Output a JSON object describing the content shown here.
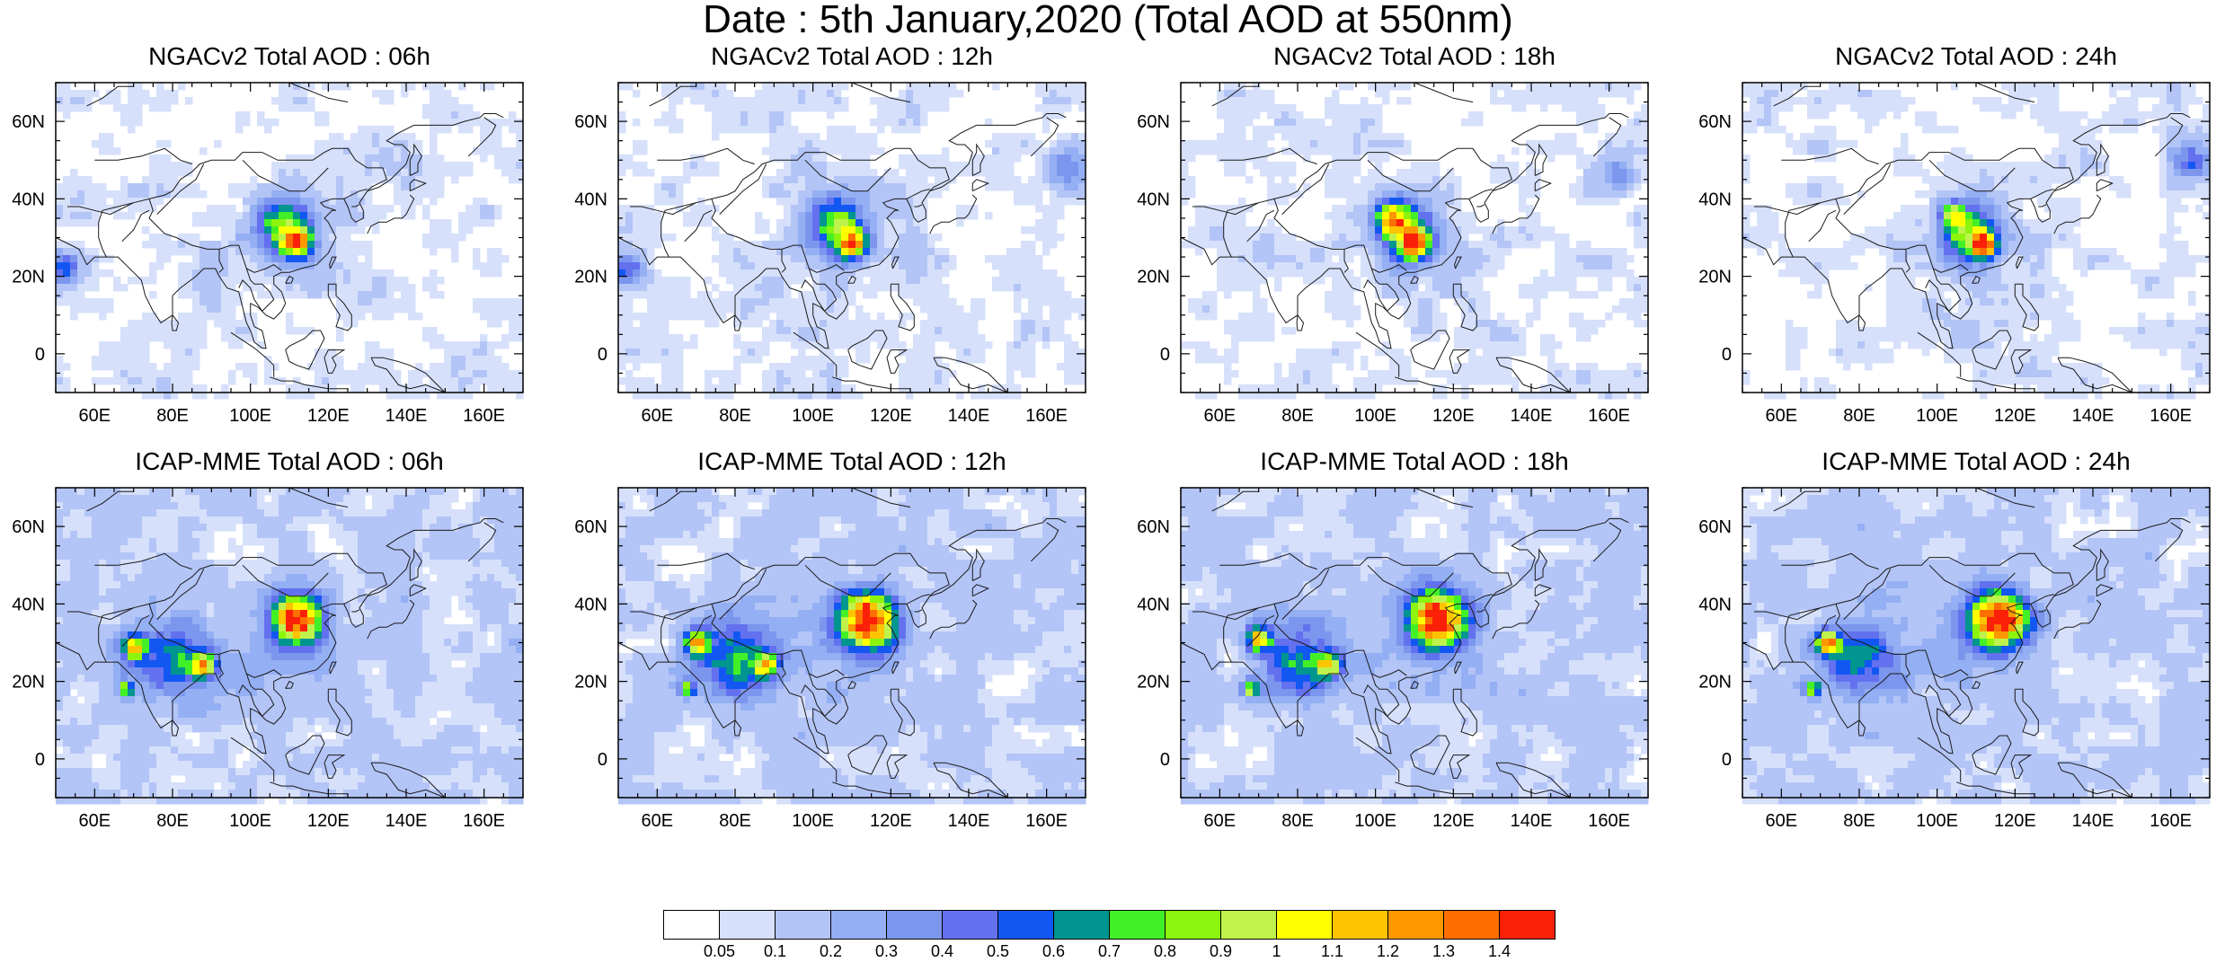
{
  "title": "Date : 5th January,2020 (Total AOD at 550nm)",
  "axes": {
    "x_ticks": [
      "60E",
      "80E",
      "100E",
      "120E",
      "140E",
      "160E"
    ],
    "x_values": [
      60,
      80,
      100,
      120,
      140,
      160
    ],
    "y_ticks": [
      "60N",
      "40N",
      "20N",
      "0"
    ],
    "y_values": [
      60,
      40,
      20,
      0
    ],
    "lon_range": [
      50,
      170
    ],
    "lat_range": [
      -10,
      70
    ]
  },
  "panels": [
    {
      "title": "NGACv2 Total AOD : 06h",
      "model": "NGACv2",
      "hour": "06h",
      "hotspots": [
        {
          "lon": 112,
          "lat": 29,
          "aod": 0.95,
          "r": 4
        },
        {
          "lon": 108,
          "lat": 33,
          "aod": 0.6,
          "r": 7
        },
        {
          "lon": 52,
          "lat": 22,
          "aod": 0.45,
          "r": 4
        }
      ]
    },
    {
      "title": "NGACv2 Total AOD : 12h",
      "model": "NGACv2",
      "hour": "12h",
      "hotspots": [
        {
          "lon": 110,
          "lat": 28,
          "aod": 0.9,
          "r": 4
        },
        {
          "lon": 106,
          "lat": 34,
          "aod": 0.65,
          "r": 7
        },
        {
          "lon": 52,
          "lat": 22,
          "aod": 0.45,
          "r": 4
        },
        {
          "lon": 165,
          "lat": 48,
          "aod": 0.35,
          "r": 5
        }
      ]
    },
    {
      "title": "NGACv2 Total AOD : 18h",
      "model": "NGACv2",
      "hour": "18h",
      "hotspots": [
        {
          "lon": 110,
          "lat": 28,
          "aod": 0.9,
          "r": 4
        },
        {
          "lon": 104,
          "lat": 35,
          "aod": 0.8,
          "r": 4
        },
        {
          "lon": 108,
          "lat": 32,
          "aod": 0.6,
          "r": 7
        },
        {
          "lon": 162,
          "lat": 46,
          "aod": 0.35,
          "r": 5
        }
      ]
    },
    {
      "title": "NGACv2 Total AOD : 24h",
      "model": "NGACv2",
      "hour": "24h",
      "hotspots": [
        {
          "lon": 112,
          "lat": 28,
          "aod": 1.25,
          "r": 3
        },
        {
          "lon": 108,
          "lat": 31,
          "aod": 0.65,
          "r": 7
        },
        {
          "lon": 104,
          "lat": 36,
          "aod": 0.7,
          "r": 3
        },
        {
          "lon": 165,
          "lat": 50,
          "aod": 0.4,
          "r": 5
        }
      ]
    },
    {
      "title": "ICAP-MME Total AOD : 06h",
      "model": "ICAP-MME",
      "hour": "06h",
      "hotspots": [
        {
          "lon": 112,
          "lat": 36,
          "aod": 1.4,
          "r": 6
        },
        {
          "lon": 70,
          "lat": 29,
          "aod": 0.9,
          "r": 3
        },
        {
          "lon": 88,
          "lat": 24,
          "aod": 0.85,
          "r": 3
        },
        {
          "lon": 68,
          "lat": 18,
          "aod": 0.8,
          "r": 2
        },
        {
          "lon": 80,
          "lat": 26,
          "aod": 0.5,
          "r": 10
        }
      ]
    },
    {
      "title": "ICAP-MME Total AOD : 12h",
      "model": "ICAP-MME",
      "hour": "12h",
      "hotspots": [
        {
          "lon": 114,
          "lat": 36,
          "aod": 1.4,
          "r": 7
        },
        {
          "lon": 70,
          "lat": 30,
          "aod": 0.9,
          "r": 3
        },
        {
          "lon": 88,
          "lat": 24,
          "aod": 0.85,
          "r": 3
        },
        {
          "lon": 68,
          "lat": 18,
          "aod": 0.8,
          "r": 2
        },
        {
          "lon": 80,
          "lat": 26,
          "aod": 0.5,
          "r": 10
        }
      ]
    },
    {
      "title": "ICAP-MME Total AOD : 18h",
      "model": "ICAP-MME",
      "hour": "18h",
      "hotspots": [
        {
          "lon": 116,
          "lat": 36,
          "aod": 1.4,
          "r": 7
        },
        {
          "lon": 70,
          "lat": 31,
          "aod": 0.9,
          "r": 3
        },
        {
          "lon": 88,
          "lat": 24,
          "aod": 0.85,
          "r": 3
        },
        {
          "lon": 68,
          "lat": 18,
          "aod": 0.8,
          "r": 2
        },
        {
          "lon": 80,
          "lat": 26,
          "aod": 0.5,
          "r": 10
        }
      ]
    },
    {
      "title": "ICAP-MME Total AOD : 24h",
      "model": "ICAP-MME",
      "hour": "24h",
      "hotspots": [
        {
          "lon": 116,
          "lat": 36,
          "aod": 1.4,
          "r": 7
        },
        {
          "lon": 72,
          "lat": 30,
          "aod": 0.9,
          "r": 3
        },
        {
          "lon": 68,
          "lat": 18,
          "aod": 0.8,
          "r": 2
        },
        {
          "lon": 80,
          "lat": 26,
          "aod": 0.5,
          "r": 10
        }
      ]
    }
  ],
  "colorbar": {
    "labels": [
      "0.05",
      "0.1",
      "0.2",
      "0.3",
      "0.4",
      "0.5",
      "0.6",
      "0.7",
      "0.8",
      "0.9",
      "1",
      "1.1",
      "1.2",
      "1.3",
      "1.4"
    ],
    "colors": [
      "#ffffff",
      "#d6e0fb",
      "#b3c4f7",
      "#94aff3",
      "#7c96ee",
      "#6371ef",
      "#1357f3",
      "#00958f",
      "#42f028",
      "#8cf40d",
      "#bff34b",
      "#fffe00",
      "#fec401",
      "#fd9800",
      "#fc6f00",
      "#fb2008"
    ]
  }
}
